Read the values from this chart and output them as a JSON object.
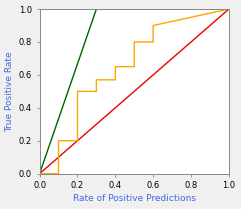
{
  "title": "",
  "xlabel": "Rate of Positive Predictions",
  "ylabel": "True Positive Rate",
  "xlim": [
    0.0,
    1.0
  ],
  "ylim": [
    0.0,
    1.0
  ],
  "xticks": [
    0.0,
    0.2,
    0.4,
    0.6,
    0.8,
    1.0
  ],
  "yticks": [
    0.0,
    0.2,
    0.4,
    0.6,
    0.8,
    1.0
  ],
  "baseline": {
    "x": [
      0.0,
      1.0
    ],
    "y": [
      0.0,
      1.0
    ],
    "color": "#EE0000",
    "linewidth": 1.0
  },
  "ideal": {
    "x": [
      0.0,
      0.3,
      1.0
    ],
    "y": [
      0.0,
      1.0,
      1.0
    ],
    "color": "#006400",
    "linewidth": 1.0
  },
  "model": {
    "x": [
      0.0,
      0.1,
      0.1,
      0.2,
      0.2,
      0.3,
      0.3,
      0.4,
      0.4,
      0.5,
      0.5,
      0.6,
      0.6,
      1.0
    ],
    "y": [
      0.0,
      0.0,
      0.2,
      0.2,
      0.5,
      0.5,
      0.57,
      0.57,
      0.65,
      0.65,
      0.8,
      0.8,
      0.9,
      1.0
    ],
    "color": "#FFA500",
    "linewidth": 1.0
  },
  "bg_color": "#F0F0F0",
  "plot_bg_color": "#FFFFFF",
  "axis_color": "#888888",
  "label_color": "#4169E1",
  "tick_label_color": "#000000",
  "label_fontsize": 6.5,
  "tick_fontsize": 6.0
}
